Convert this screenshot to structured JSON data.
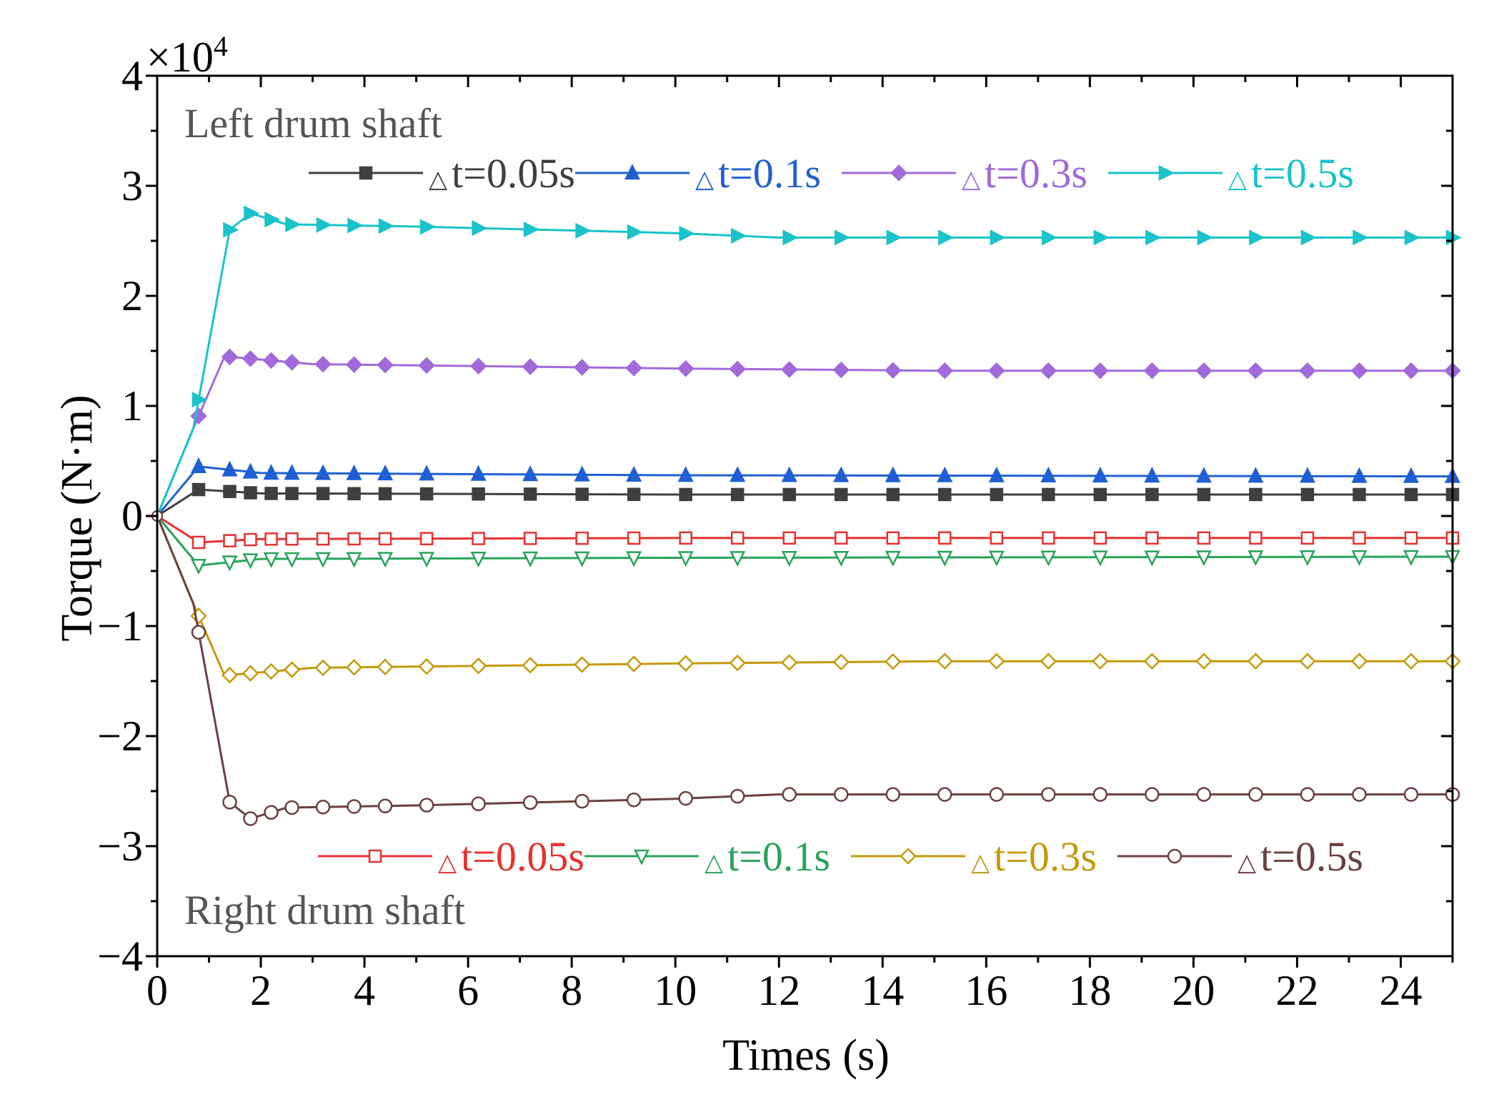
{
  "chart_data": {
    "type": "line",
    "title": "",
    "xlabel": "Times (s)",
    "ylabel": "Torque (N·m)",
    "xlim": [
      0,
      25
    ],
    "ylim": [
      -40000,
      40000
    ],
    "y_multiplier": "×10",
    "y_multiplier_exp": "4",
    "xticks": [
      0,
      2,
      4,
      6,
      8,
      10,
      12,
      14,
      16,
      18,
      20,
      22,
      24
    ],
    "xtick_labels": [
      "0",
      "2",
      "4",
      "6",
      "8",
      "10",
      "12",
      "14",
      "16",
      "18",
      "20",
      "22",
      "24"
    ],
    "yticks": [
      -40000,
      -30000,
      -20000,
      -10000,
      0,
      10000,
      20000,
      30000,
      40000
    ],
    "ytick_labels": [
      "−4",
      "−3",
      "−2",
      "−1",
      "0",
      "1",
      "2",
      "3",
      "4"
    ],
    "annotations": [
      "Left drum shaft",
      "Right drum shaft"
    ],
    "legend_symbol": "△",
    "series": [
      {
        "name": "t=0.05s",
        "group": "left",
        "color": "#3f3f3f",
        "marker": "square",
        "filled": true,
        "x": [
          0,
          0.8,
          2,
          10,
          25
        ],
        "y": [
          0,
          2400,
          2050,
          1950,
          1950
        ]
      },
      {
        "name": "t=0.1s",
        "group": "left",
        "color": "#1f5fd3",
        "marker": "triangle-up",
        "filled": true,
        "x": [
          0,
          0.8,
          2,
          10,
          25
        ],
        "y": [
          0,
          4500,
          3900,
          3700,
          3600
        ]
      },
      {
        "name": "t=0.3s",
        "group": "left",
        "color": "#a06adb",
        "marker": "diamond",
        "filled": true,
        "x": [
          0,
          0.7,
          1.3,
          3,
          10,
          15,
          25
        ],
        "y": [
          0,
          8000,
          14500,
          13800,
          13400,
          13200,
          13200
        ]
      },
      {
        "name": "t=0.5s",
        "group": "left",
        "color": "#19c3c9",
        "marker": "triangle-right",
        "filled": true,
        "x": [
          0,
          0.7,
          1.4,
          1.8,
          2.5,
          5,
          10,
          12,
          25
        ],
        "y": [
          0,
          8000,
          26000,
          27500,
          26500,
          26300,
          25700,
          25300,
          25300
        ]
      },
      {
        "name": "t=0.05s",
        "group": "right",
        "color": "#e63232",
        "marker": "square",
        "filled": false,
        "x": [
          0,
          0.8,
          2,
          10,
          25
        ],
        "y": [
          0,
          -2400,
          -2100,
          -2000,
          -2000
        ]
      },
      {
        "name": "t=0.1s",
        "group": "right",
        "color": "#29a35a",
        "marker": "triangle-down",
        "filled": false,
        "x": [
          0,
          0.8,
          2,
          10,
          25
        ],
        "y": [
          0,
          -4500,
          -3900,
          -3800,
          -3700
        ]
      },
      {
        "name": "t=0.3s",
        "group": "right",
        "color": "#c49a0c",
        "marker": "diamond",
        "filled": false,
        "x": [
          0,
          0.7,
          1.3,
          3,
          10,
          15,
          25
        ],
        "y": [
          0,
          -8000,
          -14500,
          -13800,
          -13400,
          -13200,
          -13200
        ]
      },
      {
        "name": "t=0.5s",
        "group": "right",
        "color": "#6b4040",
        "marker": "circle",
        "filled": false,
        "x": [
          0,
          0.7,
          1.4,
          1.8,
          2.5,
          5,
          10,
          12,
          25
        ],
        "y": [
          0,
          -8000,
          -26000,
          -27500,
          -26500,
          -26300,
          -25700,
          -25300,
          -25300
        ]
      }
    ]
  }
}
